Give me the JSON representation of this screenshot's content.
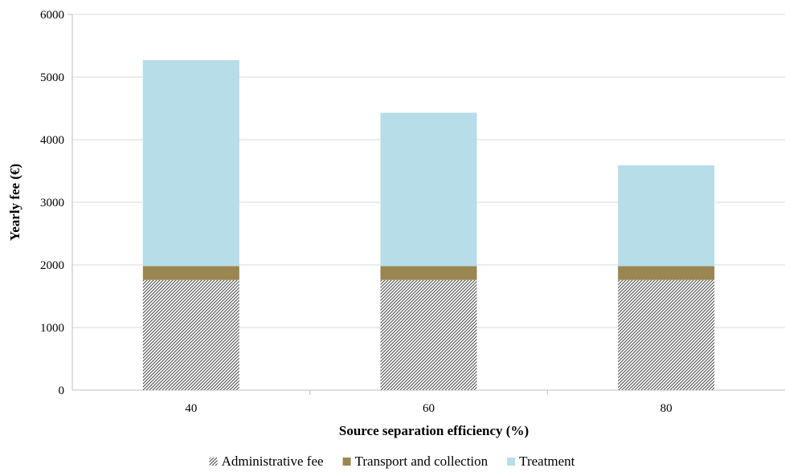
{
  "chart_data": {
    "type": "bar",
    "stacked": true,
    "categories": [
      "40",
      "60",
      "80"
    ],
    "series": [
      {
        "name": "Administrative fee",
        "values": [
          1760,
          1760,
          1760
        ],
        "color": "#555555",
        "pattern": "hatch"
      },
      {
        "name": "Transport and collection",
        "values": [
          220,
          220,
          220
        ],
        "color": "#9a8650"
      },
      {
        "name": "Treatment",
        "values": [
          3290,
          2450,
          1610
        ],
        "color": "#b7dde8"
      }
    ],
    "xlabel": "Source separation efficiency (%)",
    "ylabel": "Yearly fee (€)",
    "ylim": [
      0,
      6000
    ],
    "yticks": [
      0,
      1000,
      2000,
      3000,
      4000,
      5000,
      6000
    ],
    "grid": true,
    "legend_position": "bottom"
  }
}
